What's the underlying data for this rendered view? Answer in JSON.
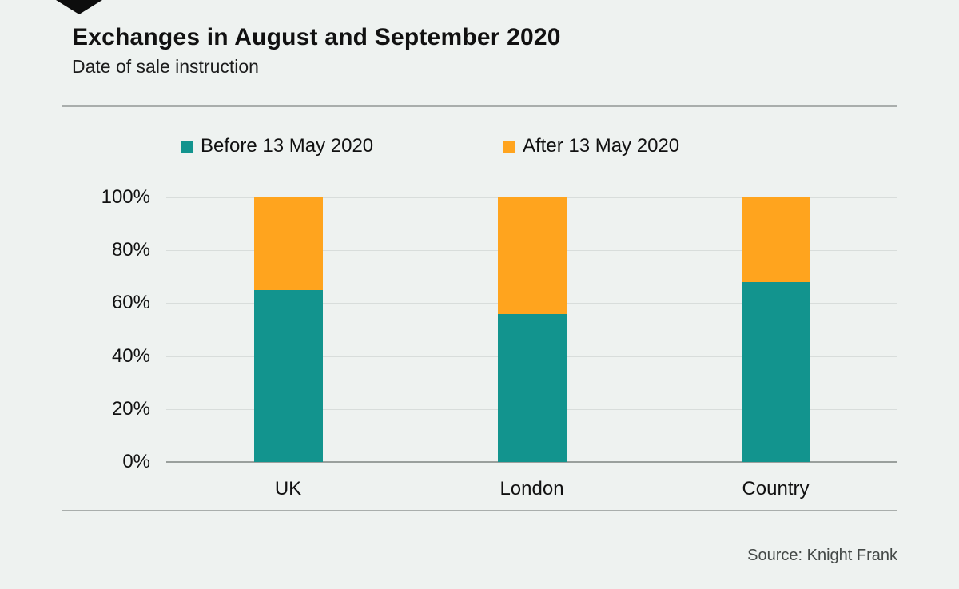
{
  "page": {
    "background": "#eef2f0",
    "ribbon_icon": "knight-frank-ribbon"
  },
  "chart_data": {
    "type": "bar",
    "stacked": true,
    "title": "Exchanges in August and September 2020",
    "subtitle": "Date of sale instruction",
    "source": "Source: Knight Frank",
    "categories": [
      "UK",
      "London",
      "Country"
    ],
    "series": [
      {
        "name": "Before 13 May 2020",
        "color": "#12948E",
        "values": [
          65,
          56,
          68
        ]
      },
      {
        "name": "After 13 May 2020",
        "color": "#FFA41E",
        "values": [
          35,
          44,
          32
        ]
      }
    ],
    "ylabel": "",
    "xlabel": "",
    "ylim": [
      0,
      100
    ],
    "yticks": [
      0,
      20,
      40,
      60,
      80,
      100
    ],
    "ytick_format": "{v}%",
    "grid": true,
    "legend_position": "top",
    "colors": {
      "before": "#12948E",
      "after": "#FFA41E",
      "gridline": "#d8dddb",
      "baseline": "#9aa09d",
      "divider": "#a9aeac",
      "text": "#111111",
      "source_text": "#444947"
    }
  }
}
